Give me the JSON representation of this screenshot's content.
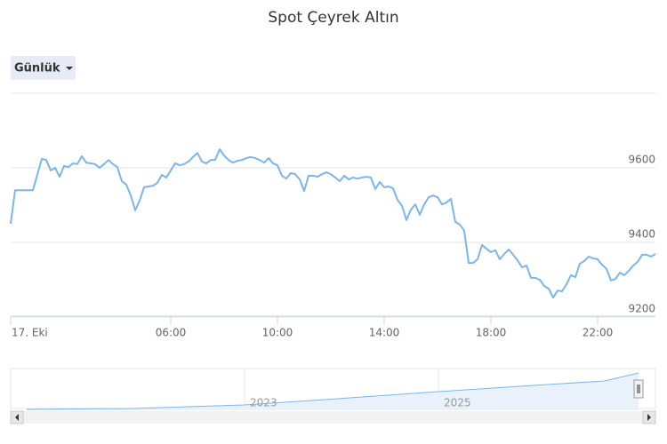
{
  "chart_data": {
    "type": "line",
    "title": "Spot Çeyrek Altın",
    "range_button": "Günlük",
    "x": [
      0,
      10,
      20,
      30,
      40,
      50,
      60,
      70,
      80,
      90,
      100,
      110,
      120,
      130,
      140,
      150,
      160,
      170,
      180,
      190,
      200,
      210,
      220,
      230,
      240,
      250,
      260,
      270,
      280,
      290,
      300,
      310,
      320,
      330,
      340,
      350,
      360,
      370,
      380,
      390,
      400,
      410,
      420,
      430,
      440,
      450,
      460,
      470,
      480,
      490,
      500,
      510,
      520,
      530,
      540,
      550,
      560,
      570,
      580,
      590,
      600,
      610,
      620,
      630,
      640,
      650,
      660,
      670,
      680,
      690,
      700,
      710,
      720,
      730,
      740,
      750,
      760,
      770,
      780,
      790,
      800,
      810,
      820,
      830,
      840,
      850,
      860,
      870,
      880,
      890,
      900,
      910,
      920,
      930,
      940,
      950,
      960,
      970,
      980,
      990,
      1000,
      1010,
      1020,
      1030,
      1040,
      1050,
      1060,
      1070,
      1080,
      1090,
      1100,
      1110,
      1120,
      1130,
      1140,
      1150,
      1160,
      1170,
      1180,
      1190,
      1200,
      1210,
      1220,
      1230,
      1240,
      1250,
      1260,
      1270,
      1280,
      1290,
      1300,
      1310,
      1320,
      1330,
      1340,
      1350,
      1360,
      1370,
      1380,
      1390,
      1400,
      1410,
      1420,
      1430,
      1440,
      1450
    ],
    "series": [
      {
        "color": "#7cb5ec",
        "values": [
          9450,
          9540,
          9540,
          9540,
          9540,
          9540,
          9582,
          9624,
          9621,
          9593,
          9600,
          9576,
          9605,
          9602,
          9612,
          9610,
          9631,
          9614,
          9612,
          9610,
          9600,
          9610,
          9621,
          9610,
          9602,
          9564,
          9555,
          9526,
          9486,
          9512,
          9548,
          9550,
          9552,
          9560,
          9581,
          9574,
          9593,
          9612,
          9607,
          9610,
          9617,
          9629,
          9640,
          9617,
          9612,
          9621,
          9621,
          9650,
          9633,
          9621,
          9614,
          9619,
          9621,
          9626,
          9629,
          9626,
          9621,
          9614,
          9626,
          9612,
          9607,
          9579,
          9571,
          9586,
          9583,
          9569,
          9538,
          9579,
          9579,
          9576,
          9583,
          9588,
          9583,
          9574,
          9564,
          9579,
          9569,
          9574,
          9571,
          9574,
          9576,
          9574,
          9543,
          9562,
          9548,
          9550,
          9545,
          9514,
          9498,
          9460,
          9488,
          9502,
          9474,
          9502,
          9521,
          9526,
          9521,
          9502,
          9507,
          9517,
          9455,
          9448,
          9431,
          9345,
          9345,
          9355,
          9393,
          9383,
          9374,
          9379,
          9355,
          9369,
          9381,
          9367,
          9352,
          9333,
          9338,
          9305,
          9305,
          9300,
          9283,
          9276,
          9252,
          9271,
          9269,
          9288,
          9312,
          9307,
          9343,
          9350,
          9362,
          9357,
          9355,
          9340,
          9329,
          9298,
          9302,
          9319,
          9312,
          9324,
          9338,
          9348,
          9367,
          9367,
          9362,
          9369
        ]
      }
    ],
    "xlim": [
      0,
      1450
    ],
    "xticks": [
      {
        "value": 0,
        "label": "17. Eki"
      },
      {
        "value": 360,
        "label": "06:00"
      },
      {
        "value": 600,
        "label": "10:00"
      },
      {
        "value": 840,
        "label": "14:00"
      },
      {
        "value": 1080,
        "label": "18:00"
      },
      {
        "value": 1320,
        "label": "22:00"
      }
    ],
    "ylim": [
      9200,
      9800
    ],
    "yticks": [
      9200,
      9400,
      9600
    ],
    "grid": true,
    "navigator_labels": [
      "2023",
      "2025"
    ]
  }
}
